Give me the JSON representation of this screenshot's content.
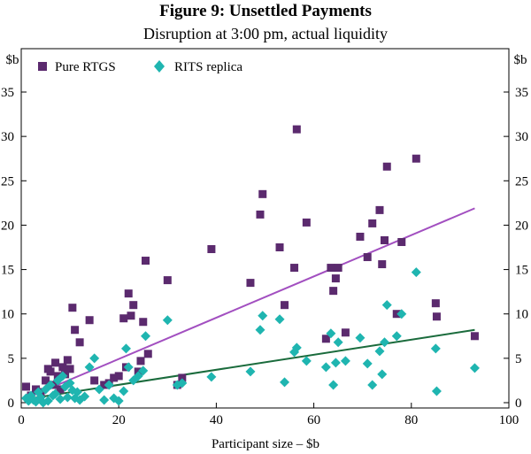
{
  "chart_data": {
    "type": "scatter",
    "title": "Figure 9: Unsettled Payments",
    "subtitle": "Disruption at 3:00 pm, actual liquidity",
    "xlabel": "Participant size – $b",
    "ylabel_left": "$b",
    "ylabel_right": "$b",
    "xlim": [
      0,
      100
    ],
    "ylim": [
      0,
      38
    ],
    "xticks": [
      0,
      20,
      40,
      60,
      80,
      100
    ],
    "yticks": [
      0,
      5,
      10,
      15,
      20,
      25,
      30,
      35
    ],
    "grid": false,
    "legend_position": "top-left",
    "series": [
      {
        "name": "Pure RTGS",
        "marker": "square",
        "color": "#5b2a6e",
        "points": [
          [
            1,
            1.8
          ],
          [
            2,
            0.8
          ],
          [
            3,
            1.5
          ],
          [
            4,
            1.2
          ],
          [
            5,
            2.5
          ],
          [
            5.5,
            3.8
          ],
          [
            6,
            3.5
          ],
          [
            6.5,
            2.0
          ],
          [
            7,
            4.5
          ],
          [
            7.5,
            3.0
          ],
          [
            8,
            1.5
          ],
          [
            8.5,
            4.0
          ],
          [
            9,
            3.2
          ],
          [
            9.5,
            4.8
          ],
          [
            10,
            3.8
          ],
          [
            10.5,
            10.7
          ],
          [
            11,
            8.2
          ],
          [
            12,
            6.8
          ],
          [
            14,
            9.3
          ],
          [
            15,
            2.5
          ],
          [
            17,
            2.0
          ],
          [
            18,
            2.2
          ],
          [
            19,
            2.8
          ],
          [
            20,
            3.0
          ],
          [
            21,
            9.5
          ],
          [
            21.5,
            4.0
          ],
          [
            22,
            12.3
          ],
          [
            22.5,
            9.8
          ],
          [
            23,
            11.0
          ],
          [
            24,
            3.5
          ],
          [
            24.5,
            4.7
          ],
          [
            25,
            9.1
          ],
          [
            25.5,
            16.0
          ],
          [
            26,
            5.5
          ],
          [
            30,
            13.8
          ],
          [
            32,
            2.0
          ],
          [
            33,
            2.8
          ],
          [
            39,
            17.3
          ],
          [
            47,
            13.5
          ],
          [
            49,
            21.2
          ],
          [
            49.5,
            23.5
          ],
          [
            53,
            17.5
          ],
          [
            54,
            11.0
          ],
          [
            56,
            15.2
          ],
          [
            56.5,
            30.8
          ],
          [
            58.5,
            20.3
          ],
          [
            62.5,
            7.2
          ],
          [
            63.5,
            15.2
          ],
          [
            64,
            12.6
          ],
          [
            64.5,
            14.0
          ],
          [
            65,
            15.2
          ],
          [
            66.5,
            7.9
          ],
          [
            69.5,
            18.7
          ],
          [
            71,
            16.4
          ],
          [
            72,
            20.2
          ],
          [
            73.5,
            21.7
          ],
          [
            74,
            15.6
          ],
          [
            74.5,
            18.3
          ],
          [
            75,
            26.6
          ],
          [
            77,
            10.0
          ],
          [
            78,
            18.1
          ],
          [
            81,
            27.5
          ],
          [
            85,
            11.2
          ],
          [
            85.2,
            9.7
          ],
          [
            93,
            7.5
          ]
        ]
      },
      {
        "name": "RITS replica",
        "marker": "diamond",
        "color": "#1fb5b0",
        "points": [
          [
            1,
            0.5
          ],
          [
            1.5,
            0.2
          ],
          [
            2,
            0.8
          ],
          [
            2.5,
            0.3
          ],
          [
            3,
            0.1
          ],
          [
            3.5,
            1.2
          ],
          [
            4,
            0.6
          ],
          [
            4.5,
            0.0
          ],
          [
            5,
            1.5
          ],
          [
            5.5,
            0.2
          ],
          [
            6,
            2.0
          ],
          [
            6.5,
            0.8
          ],
          [
            7,
            1.0
          ],
          [
            7.5,
            2.5
          ],
          [
            8,
            0.4
          ],
          [
            8.5,
            3.0
          ],
          [
            9,
            1.8
          ],
          [
            9.5,
            0.6
          ],
          [
            10,
            2.2
          ],
          [
            10.5,
            1.4
          ],
          [
            11,
            0.5
          ],
          [
            11.5,
            1.2
          ],
          [
            12,
            0.3
          ],
          [
            13,
            0.7
          ],
          [
            14,
            4.0
          ],
          [
            15,
            5.0
          ],
          [
            16,
            1.5
          ],
          [
            17,
            0.3
          ],
          [
            18,
            2.0
          ],
          [
            19,
            0.5
          ],
          [
            20,
            0.2
          ],
          [
            21,
            1.3
          ],
          [
            21.5,
            6.1
          ],
          [
            22,
            4.0
          ],
          [
            23,
            2.5
          ],
          [
            24,
            3.0
          ],
          [
            25,
            3.6
          ],
          [
            25.5,
            7.5
          ],
          [
            30,
            9.3
          ],
          [
            32,
            2.0
          ],
          [
            33,
            2.2
          ],
          [
            39,
            2.9
          ],
          [
            47,
            3.5
          ],
          [
            49,
            8.2
          ],
          [
            49.5,
            9.8
          ],
          [
            53,
            9.4
          ],
          [
            54,
            2.3
          ],
          [
            56,
            5.7
          ],
          [
            56.5,
            6.2
          ],
          [
            58.5,
            4.7
          ],
          [
            62.5,
            4.0
          ],
          [
            63.5,
            7.8
          ],
          [
            64,
            2.0
          ],
          [
            64.5,
            4.5
          ],
          [
            65,
            6.8
          ],
          [
            66.5,
            4.7
          ],
          [
            69.5,
            7.3
          ],
          [
            71,
            4.4
          ],
          [
            72,
            2.0
          ],
          [
            73.5,
            5.8
          ],
          [
            74,
            3.2
          ],
          [
            74.5,
            6.8
          ],
          [
            75,
            11.0
          ],
          [
            77,
            7.5
          ],
          [
            78,
            10.0
          ],
          [
            81,
            14.7
          ],
          [
            85,
            6.1
          ],
          [
            85.2,
            1.3
          ],
          [
            93,
            3.9
          ]
        ]
      }
    ],
    "trend_lines": [
      {
        "name": "Pure RTGS trend",
        "color": "#a24fc0",
        "x": [
          1,
          93
        ],
        "y": [
          0.5,
          21.9
        ]
      },
      {
        "name": "RITS replica trend",
        "color": "#1a6b3c",
        "x": [
          1,
          93
        ],
        "y": [
          0.4,
          8.2
        ]
      }
    ]
  }
}
